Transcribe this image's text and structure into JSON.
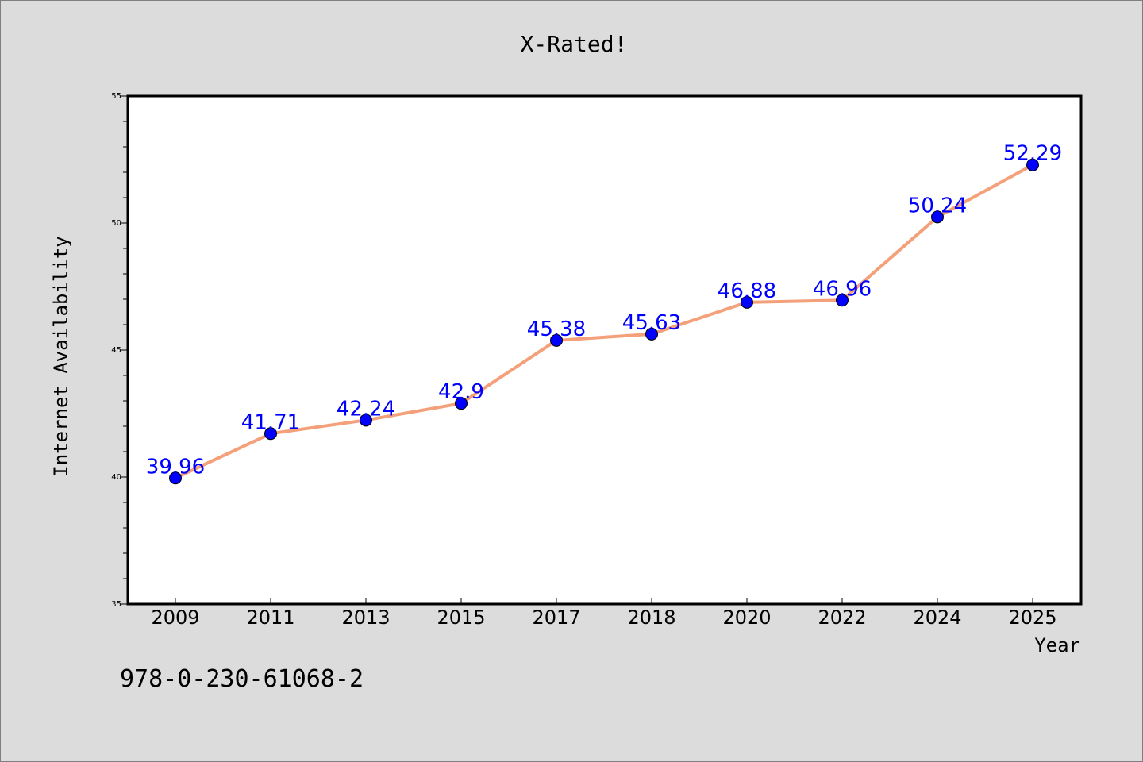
{
  "chart_data": {
    "type": "line",
    "title": "X-Rated!",
    "xlabel": "Year",
    "ylabel": "Internet Availability",
    "categories": [
      "2009",
      "2011",
      "2013",
      "2015",
      "2017",
      "2018",
      "2020",
      "2022",
      "2024",
      "2025"
    ],
    "series": [
      {
        "values": [
          39.96,
          41.71,
          42.24,
          42.9,
          45.38,
          45.63,
          46.88,
          46.96,
          50.24,
          52.29
        ],
        "line_color": "#f4a07a",
        "marker_color": "#0000ff"
      }
    ],
    "data_labels": [
      "39.96",
      "41.71",
      "42.24",
      "42.9",
      "45.38",
      "45.63",
      "46.88",
      "46.96",
      "50.24",
      "52.29"
    ],
    "ylim": [
      35,
      55
    ],
    "yticks": [
      "35",
      "40",
      "45",
      "50",
      "55"
    ],
    "grid": false,
    "legend": false
  },
  "footer": {
    "isbn": "978-0-230-61068-2"
  },
  "colors": {
    "background": "#dcdcdc",
    "plot_background": "#ffffff",
    "line": "#f4a07a",
    "marker": "#0000ff",
    "data_label": "#0000ff"
  }
}
